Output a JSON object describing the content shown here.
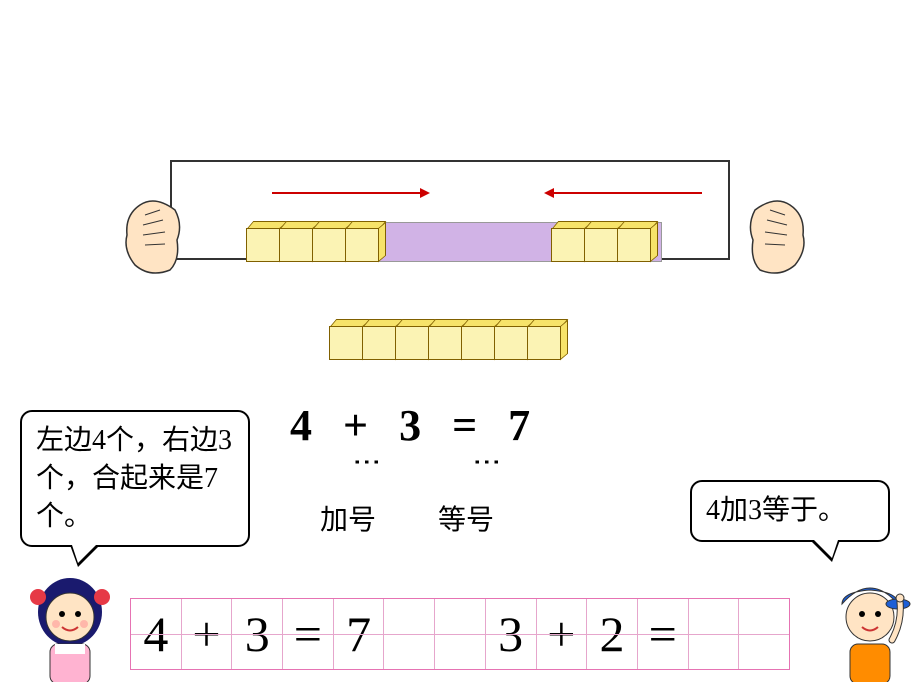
{
  "colors": {
    "cube_yellow": "#f7e36a",
    "cube_light": "#fbf3b4",
    "cube_border": "#806000",
    "purple": "#d1b3e6",
    "arrow_red": "#cc0000",
    "grid_pink": "#e673b3",
    "grid_light": "#e6a6cc",
    "text": "#000000",
    "girl_hair": "#1a1a6e",
    "girl_bow": "#e63946",
    "skin": "#ffe4c4",
    "boy_cap": "#1e5fd6",
    "boy_shirt": "#ff8c00"
  },
  "cubes": {
    "left_count": 4,
    "right_count": 3,
    "bottom_count": 7
  },
  "equation": {
    "a": "4",
    "op": "+",
    "b": "3",
    "eq": "=",
    "c": "7",
    "plus_label": "加号",
    "equals_label": "等号"
  },
  "speech_left": "左边4个，右边3个，合起来是7个。",
  "speech_right": "4加3等于。",
  "grid": [
    "4",
    "+",
    "3",
    "=",
    "7",
    "",
    "",
    "3",
    "+",
    "2",
    "=",
    "",
    ""
  ]
}
